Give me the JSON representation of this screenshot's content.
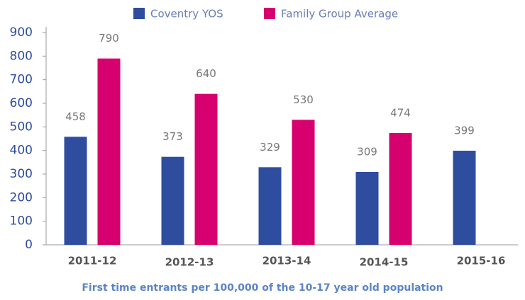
{
  "chart_data": {
    "type": "bar",
    "x_label": "First time entrants per 100,000 of the 10-17 year old population",
    "categories": [
      "2011-12",
      "2012-13",
      "2013-14",
      "2014-15",
      "2015-16"
    ],
    "series": [
      {
        "name": "Coventry YOS",
        "color": "#2e4d9f",
        "values": [
          458,
          373,
          329,
          309,
          399
        ]
      },
      {
        "name": "Family Group Average",
        "color": "#d6006f",
        "values": [
          790,
          640,
          530,
          474,
          null
        ]
      }
    ],
    "ylim": [
      0,
      900
    ],
    "yticks": [
      0,
      100,
      200,
      300,
      400,
      500,
      600,
      700,
      800,
      900
    ],
    "grid": false,
    "legend": "top"
  }
}
